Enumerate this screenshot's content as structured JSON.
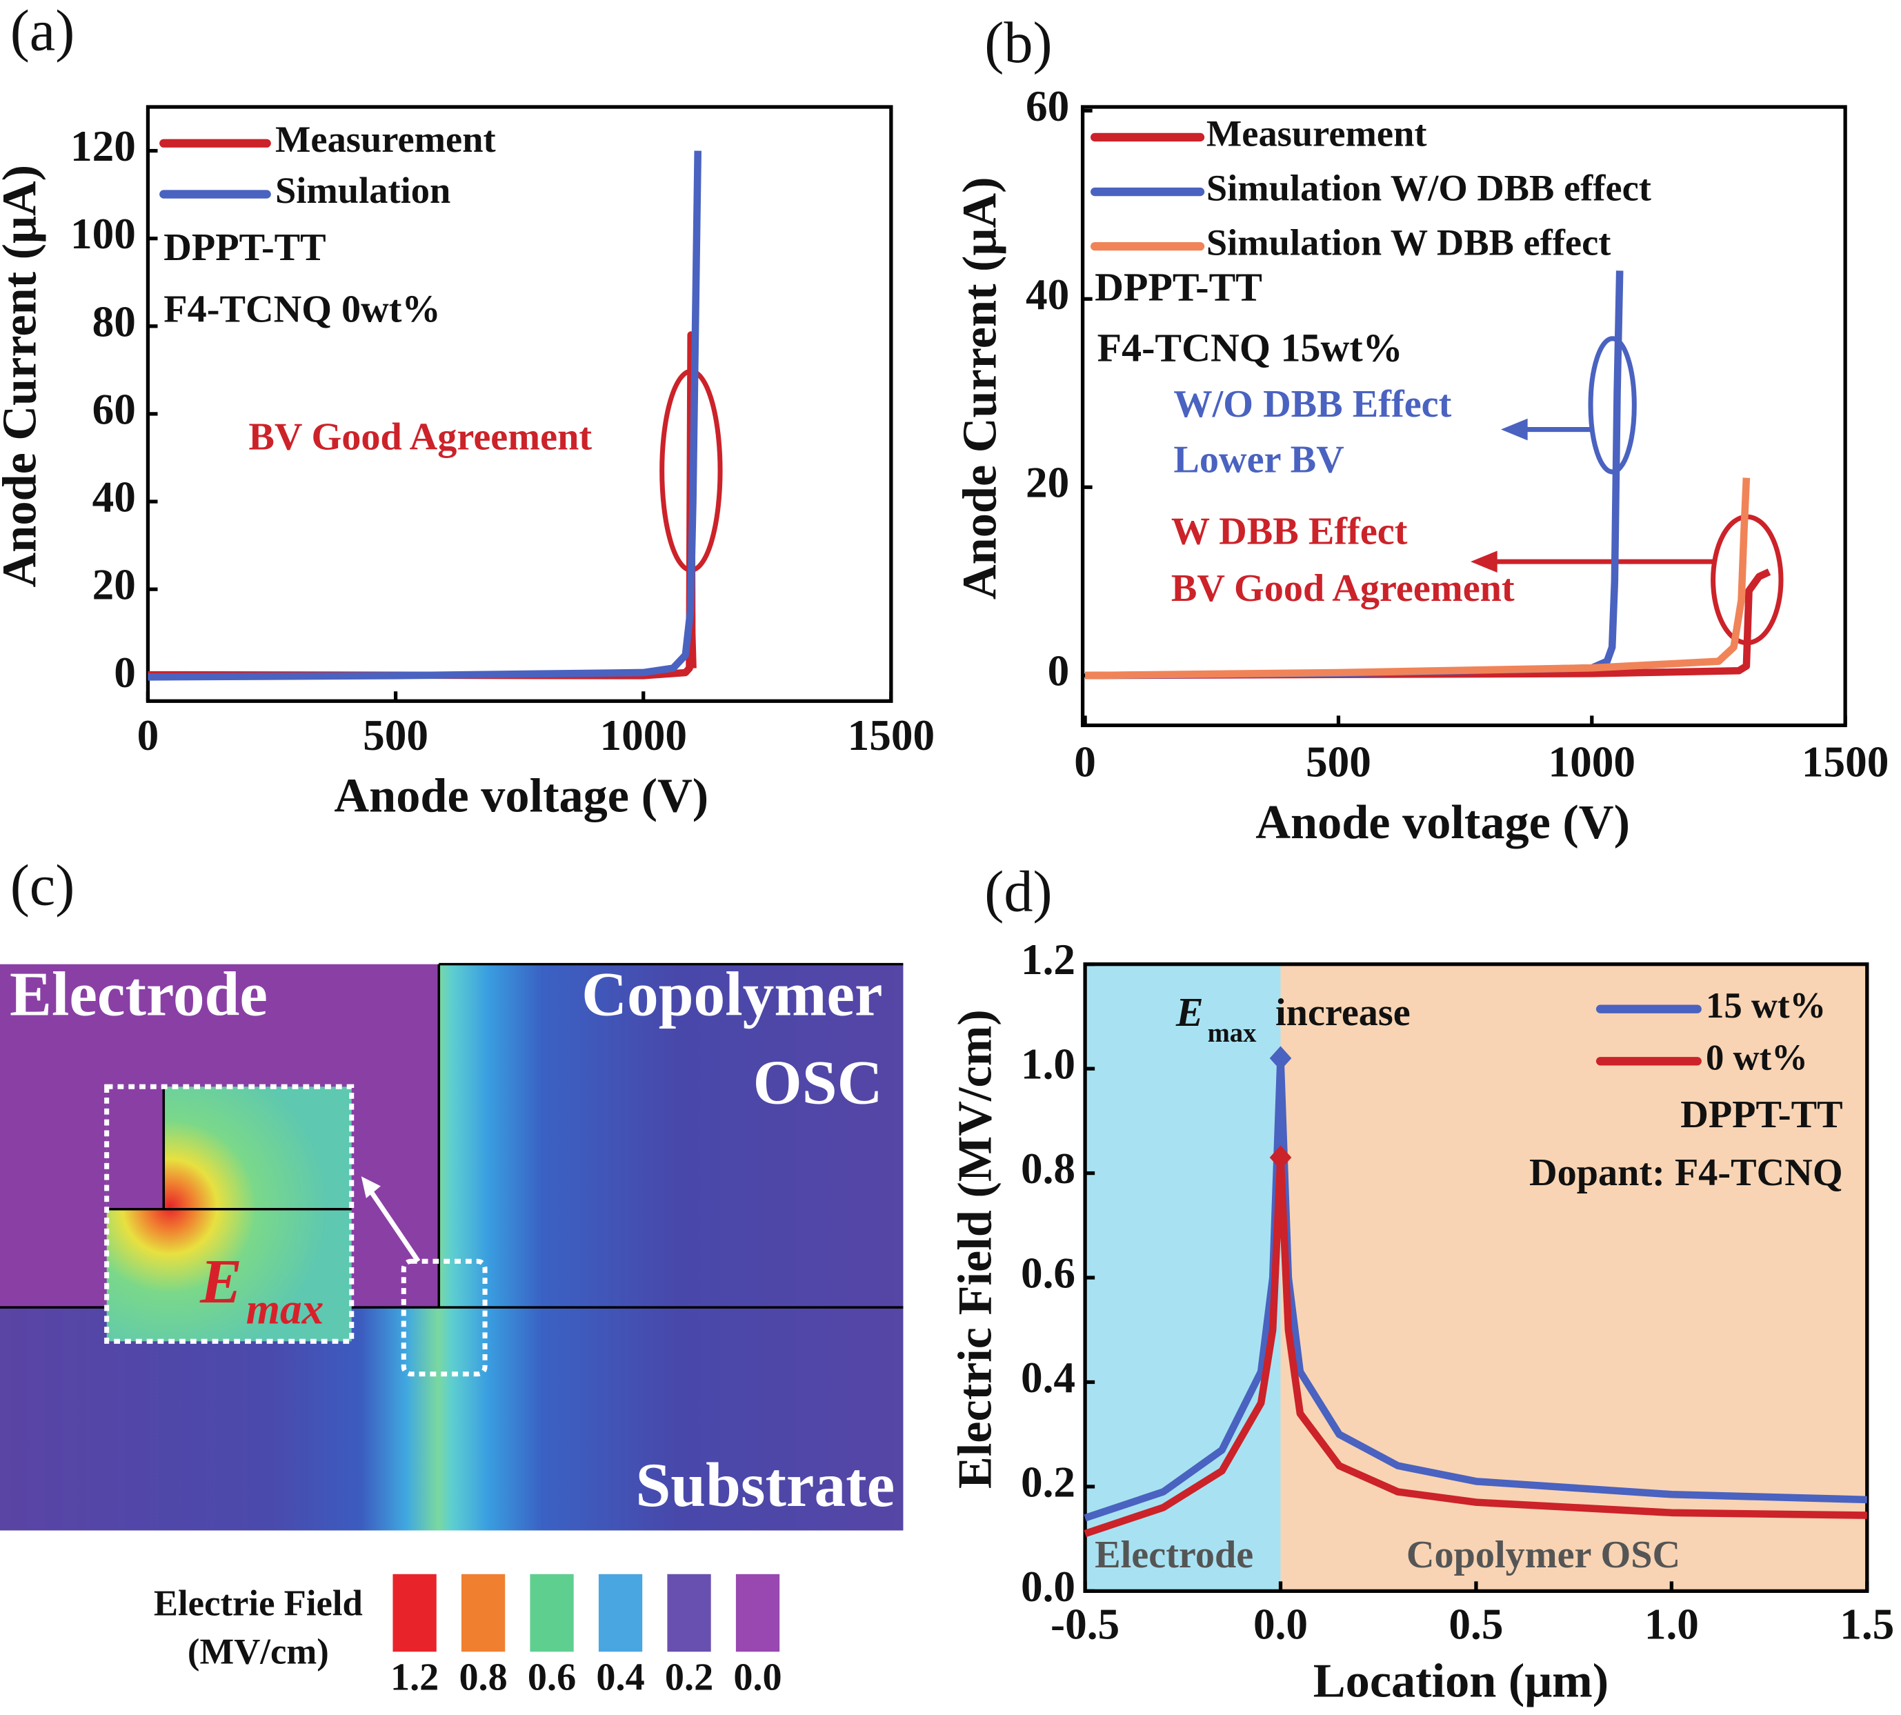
{
  "chart_data": [
    {
      "type": "line",
      "panel_label": "(a)",
      "x_label": "Anode voltage (V)",
      "y_label": "Anode Current (μA)",
      "xlim": [
        0,
        1500
      ],
      "ylim": [
        -5.5,
        130
      ],
      "xticks": [
        0,
        500,
        1000,
        1500
      ],
      "yticks": [
        0,
        20,
        40,
        60,
        80,
        100,
        120
      ],
      "series": [
        {
          "name": "Measurement",
          "color": "#cc2229",
          "x": [
            0,
            1000,
            1085,
            1093,
            1096,
            1098,
            1100
          ],
          "values": [
            0.5,
            0.3,
            1,
            2,
            78,
            10,
            2
          ]
        },
        {
          "name": "Simulation",
          "color": "#4a62c0",
          "x": [
            0,
            500,
            1000,
            1060,
            1085,
            1095,
            1100,
            1105,
            1110
          ],
          "values": [
            0,
            0.3,
            1,
            2,
            5,
            15,
            40,
            80,
            120
          ]
        }
      ],
      "annotations": [
        {
          "text": "DPPT-TT",
          "color": "#111"
        },
        {
          "text": "F4-TCNQ 0wt%",
          "color": "#111"
        },
        {
          "text": "BV Good Agreement",
          "color": "#cc2229"
        }
      ]
    },
    {
      "type": "line",
      "panel_label": "(b)",
      "x_label": "Anode voltage (V)",
      "y_label": "Anode Current (μA)",
      "xlim": [
        0,
        1500
      ],
      "ylim": [
        -5.3,
        60.4
      ],
      "xticks": [
        0,
        500,
        1000,
        1500
      ],
      "yticks": [
        0,
        20,
        40,
        60
      ],
      "series": [
        {
          "name": "Measurement",
          "color": "#cc2229",
          "x": [
            0,
            1000,
            1290,
            1305,
            1310,
            1330,
            1350
          ],
          "values": [
            0,
            0.2,
            0.5,
            1,
            9,
            10.5,
            11
          ]
        },
        {
          "name": "Simulation W/O DBB effect",
          "color": "#4a62c0",
          "x": [
            0,
            500,
            1000,
            1030,
            1040,
            1045,
            1050,
            1055
          ],
          "values": [
            0,
            0.2,
            0.8,
            1.5,
            3,
            10,
            30,
            43
          ]
        },
        {
          "name": "Simulation W DBB effect",
          "color": "#f08458",
          "x": [
            0,
            500,
            1000,
            1250,
            1280,
            1295,
            1300,
            1305
          ],
          "values": [
            0,
            0.3,
            0.8,
            1.5,
            3,
            8,
            15,
            21
          ]
        }
      ],
      "annotations": [
        {
          "text": "DPPT-TT",
          "color": "#111"
        },
        {
          "text": "F4-TCNQ 15wt%",
          "color": "#111"
        },
        {
          "text": "W/O DBB Effect",
          "color": "#4a62c0"
        },
        {
          "text": "Lower BV",
          "color": "#4a62c0"
        },
        {
          "text": "W DBB Effect",
          "color": "#cc2229"
        },
        {
          "text": "BV Good Agreement",
          "color": "#cc2229"
        }
      ]
    },
    {
      "type": "contour",
      "panel_label": "(c)",
      "labels": [
        "Electrode",
        "Copolymer",
        "OSC",
        "Substrate"
      ],
      "emax": [
        "E",
        "max"
      ],
      "colorbar": {
        "title": [
          "Electrie Field",
          "(MV/cm)"
        ],
        "ticks": [
          1.2,
          0.8,
          0.6,
          0.4,
          0.2,
          {
            "value": 0,
            "label": "0.0"
          }
        ],
        "colors": [
          "#e8242a",
          "#f08030",
          "#5fcf8f",
          "#4aa6e0",
          "#6850b0",
          "#9848b0"
        ]
      }
    },
    {
      "type": "line",
      "panel_label": "(d)",
      "x_label": "Location (μm)",
      "y_label": "Electric Field (MV/cm)",
      "xlim": [
        -0.5,
        1.5
      ],
      "ylim": [
        0,
        1.2
      ],
      "xticks": [
        -0.5,
        {
          "value": 0,
          "label": "0.0"
        },
        0.5,
        {
          "value": 1,
          "label": "1.0"
        },
        1.5
      ],
      "yticks": [
        {
          "value": 0,
          "label": "0.0"
        },
        0.2,
        0.4,
        0.6,
        0.8,
        {
          "value": 1,
          "label": "1.0"
        },
        1.2
      ],
      "regions": [
        {
          "name": "Electrode",
          "color": "#a8e2f2",
          "span": [
            -0.5,
            0
          ]
        },
        {
          "name": "Copolymer OSC",
          "color": "#f8d4b4",
          "span": [
            0,
            1.5
          ]
        }
      ],
      "series": [
        {
          "name": "15 wt%",
          "color": "#4a62c0",
          "marker": "diamond",
          "x": [
            -0.5,
            -0.3,
            -0.15,
            -0.05,
            -0.02,
            0,
            0.02,
            0.05,
            0.15,
            0.3,
            0.5,
            1.0,
            1.5
          ],
          "values": [
            0.14,
            0.19,
            0.27,
            0.42,
            0.6,
            1.02,
            0.6,
            0.42,
            0.3,
            0.24,
            0.21,
            0.185,
            0.175
          ]
        },
        {
          "name": "0 wt%",
          "color": "#cc2229",
          "marker": "diamond",
          "x": [
            -0.5,
            -0.3,
            -0.15,
            -0.05,
            -0.02,
            0,
            0.02,
            0.05,
            0.15,
            0.3,
            0.5,
            1.0,
            1.5
          ],
          "values": [
            0.11,
            0.16,
            0.23,
            0.36,
            0.5,
            0.83,
            0.5,
            0.34,
            0.24,
            0.19,
            0.17,
            0.15,
            0.145
          ]
        }
      ],
      "annotations": [
        {
          "text": "E",
          "color": "#111"
        },
        {
          "text": "max",
          "color": "#111"
        },
        {
          "text": "increase",
          "color": "#111"
        },
        {
          "text": "DPPT-TT",
          "color": "#111"
        },
        {
          "text": "Dopant: F4-TCNQ",
          "color": "#111"
        }
      ]
    }
  ]
}
